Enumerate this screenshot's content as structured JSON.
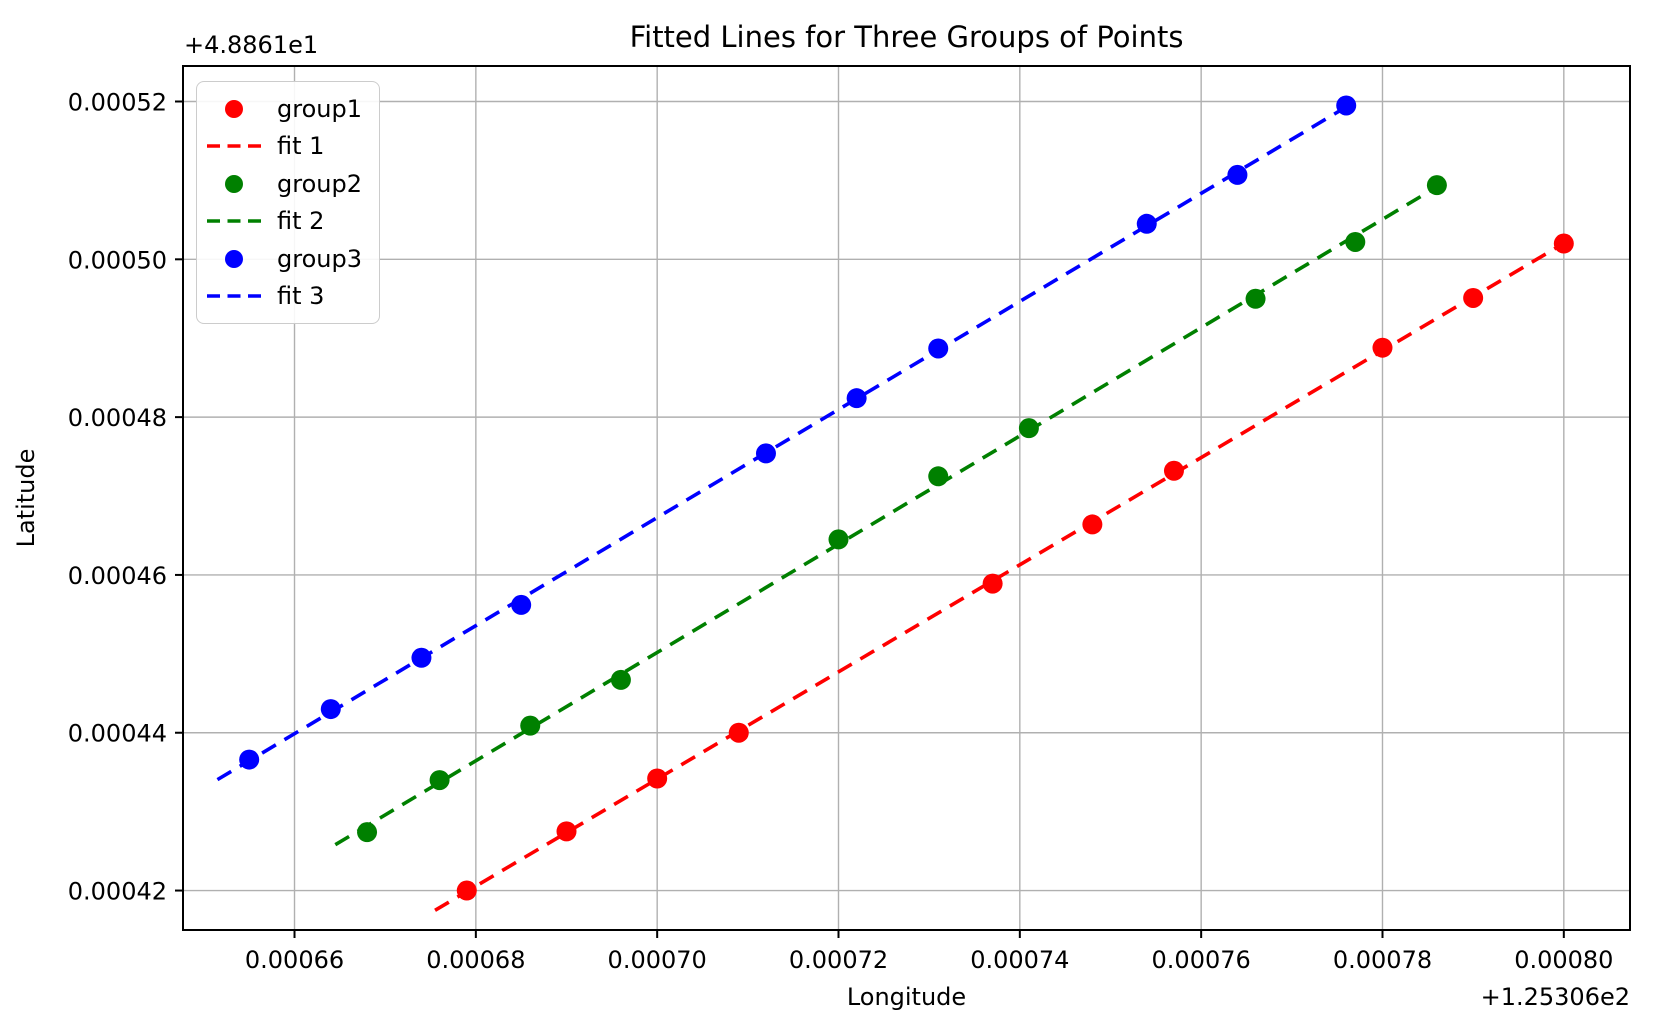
{
  "chart_data": {
    "type": "scatter",
    "title": "Fitted Lines for Three Groups of Points",
    "xlabel": "Longitude",
    "ylabel": "Latitude",
    "x_offset_text": "+1.25306e2",
    "y_offset_text": "+4.8861e1",
    "xlim": [
      0.0006477,
      0.0008073
    ],
    "ylim": [
      0.000415,
      0.0005245
    ],
    "xticks": [
      0.00066,
      0.00068,
      0.0007,
      0.00072,
      0.00074,
      0.00076,
      0.00078,
      0.0008
    ],
    "xtick_labels": [
      "0.00066",
      "0.00068",
      "0.00070",
      "0.00072",
      "0.00074",
      "0.00076",
      "0.00078",
      "0.00080"
    ],
    "yticks": [
      0.00042,
      0.00044,
      0.00046,
      0.00048,
      0.0005,
      0.00052
    ],
    "ytick_labels": [
      "0.00042",
      "0.00044",
      "0.00046",
      "0.00048",
      "0.00050",
      "0.00052"
    ],
    "grid": true,
    "legend_position": "upper left",
    "colors": {
      "group1": "#ff0000",
      "group2": "#008000",
      "group3": "#0000ff",
      "grid": "#b0b0b0",
      "spine": "#000000"
    },
    "series": [
      {
        "name": "group1",
        "fit_label": "fit 1",
        "color": "#ff0000",
        "points": [
          [
            0.000679,
            0.00042
          ],
          [
            0.00069,
            0.0004275
          ],
          [
            0.0007,
            0.0004342
          ],
          [
            0.000709,
            0.00044
          ],
          [
            0.000737,
            0.0004589
          ],
          [
            0.000748,
            0.0004664
          ],
          [
            0.000757,
            0.0004732
          ],
          [
            0.00078,
            0.0004888
          ],
          [
            0.00079,
            0.0004951
          ],
          [
            0.0008,
            0.000502
          ]
        ]
      },
      {
        "name": "group2",
        "fit_label": "fit 2",
        "color": "#008000",
        "points": [
          [
            0.000668,
            0.0004274
          ],
          [
            0.000676,
            0.000434
          ],
          [
            0.000686,
            0.0004409
          ],
          [
            0.000696,
            0.0004467
          ],
          [
            0.00072,
            0.0004645
          ],
          [
            0.000731,
            0.0004725
          ],
          [
            0.000741,
            0.0004786
          ],
          [
            0.000766,
            0.000495
          ],
          [
            0.000777,
            0.0005022
          ],
          [
            0.000786,
            0.0005094
          ]
        ]
      },
      {
        "name": "group3",
        "fit_label": "fit 3",
        "color": "#0000ff",
        "points": [
          [
            0.000655,
            0.0004366
          ],
          [
            0.000664,
            0.000443
          ],
          [
            0.000674,
            0.0004495
          ],
          [
            0.000685,
            0.0004562
          ],
          [
            0.000712,
            0.0004754
          ],
          [
            0.000722,
            0.0004824
          ],
          [
            0.000731,
            0.0004887
          ],
          [
            0.000754,
            0.0005045
          ],
          [
            0.000764,
            0.0005107
          ],
          [
            0.000776,
            0.0005195
          ]
        ]
      }
    ],
    "legend": [
      {
        "label": "group1",
        "color": "#ff0000",
        "handle": "marker"
      },
      {
        "label": "fit 1",
        "color": "#ff0000",
        "handle": "dashed-line"
      },
      {
        "label": "group2",
        "color": "#008000",
        "handle": "marker"
      },
      {
        "label": "fit 2",
        "color": "#008000",
        "handle": "dashed-line"
      },
      {
        "label": "group3",
        "color": "#0000ff",
        "handle": "marker"
      },
      {
        "label": "fit 3",
        "color": "#0000ff",
        "handle": "dashed-line"
      }
    ]
  }
}
